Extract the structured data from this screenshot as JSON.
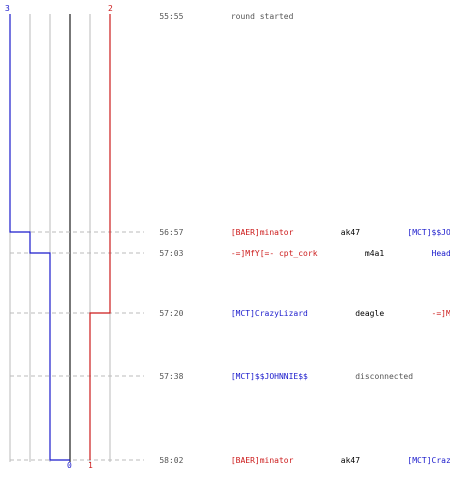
{
  "colors": {
    "team_blue": "#1a1acc",
    "team_red": "#cc1a1a",
    "gray_text": "#555555",
    "black_text": "#000000",
    "grid": "#bbbbbb",
    "center_line": "#777777",
    "dash": "#bbbbbb"
  },
  "counts": {
    "top_blue": "3",
    "top_red": "2",
    "bottom_blue": "0",
    "bottom_red": "1"
  },
  "events": [
    {
      "id": "round-start",
      "time": "55:55",
      "parts": [
        {
          "text": "round started",
          "color": "gray"
        }
      ]
    },
    {
      "id": "kill-1",
      "time": "56:57",
      "parts": [
        {
          "text": "[BAER]minator",
          "color": "red"
        },
        {
          "text": "ak47",
          "color": "black"
        },
        {
          "text": "[MCT]$$JOHNNIE$$",
          "color": "blue"
        }
      ]
    },
    {
      "id": "kill-2",
      "time": "57:03",
      "parts": [
        {
          "text": "-=]MfY[=- cpt_cork",
          "color": "red"
        },
        {
          "text": "m4a1",
          "color": "black"
        },
        {
          "text": "HeadbanG",
          "color": "blue"
        }
      ]
    },
    {
      "id": "kill-3",
      "time": "57:20",
      "parts": [
        {
          "text": "[MCT]CrazyLizard",
          "color": "blue"
        },
        {
          "text": "deagle",
          "color": "black"
        },
        {
          "text": "-=]MfY[=- cpt_cork",
          "color": "red"
        }
      ]
    },
    {
      "id": "disconnect",
      "time": "57:38",
      "parts": [
        {
          "text": "[MCT]$$JOHNNIE$$",
          "color": "blue"
        },
        {
          "text": "disconnected",
          "color": "gray"
        }
      ]
    },
    {
      "id": "kill-4",
      "time": "58:02",
      "parts": [
        {
          "text": "[BAER]minator",
          "color": "red"
        },
        {
          "text": "ak47",
          "color": "black"
        },
        {
          "text": "[MCT]CrazyLizard",
          "color": "blue"
        }
      ]
    }
  ]
}
